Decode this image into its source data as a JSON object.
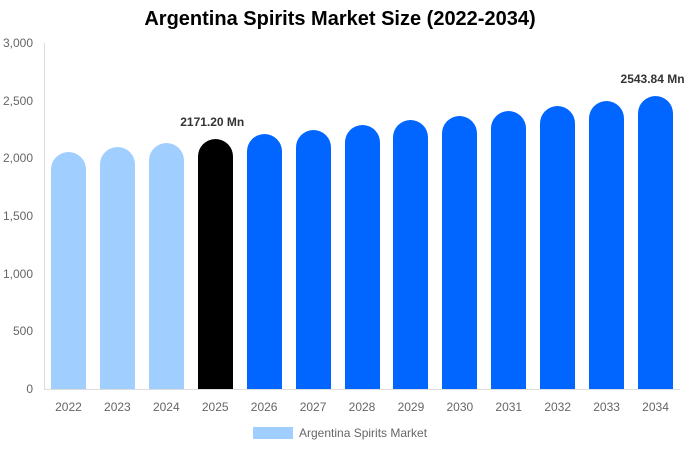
{
  "chart_data": {
    "type": "bar",
    "title": "Argentina Spirits Market Size (2022-2034)",
    "xlabel": "",
    "ylabel": "",
    "ylim": [
      0,
      3000
    ],
    "yticks": [
      "0",
      "500",
      "1,000",
      "1,500",
      "2,000",
      "2,500",
      "3,000"
    ],
    "grid": false,
    "legend_position": "bottom",
    "categories": [
      "2022",
      "2023",
      "2024",
      "2025",
      "2026",
      "2027",
      "2028",
      "2029",
      "2030",
      "2031",
      "2032",
      "2033",
      "2034"
    ],
    "series": [
      {
        "name": "Argentina Spirits Market",
        "values": [
          2059,
          2096,
          2133,
          2171.2,
          2210,
          2249,
          2289,
          2330,
          2371,
          2414,
          2457,
          2500,
          2543.84
        ]
      }
    ],
    "bar_colors": [
      "#a0cfff",
      "#a0cfff",
      "#a0cfff",
      "#000000",
      "#0066ff",
      "#0066ff",
      "#0066ff",
      "#0066ff",
      "#0066ff",
      "#0066ff",
      "#0066ff",
      "#0066ff",
      "#0066ff"
    ],
    "annotations": [
      {
        "category": "2025",
        "text": "2171.20 Mn"
      },
      {
        "category": "2034",
        "text": "2543.84 Mn"
      }
    ]
  },
  "legend": {
    "label": "Argentina Spirits Market",
    "color": "#a0cfff"
  }
}
